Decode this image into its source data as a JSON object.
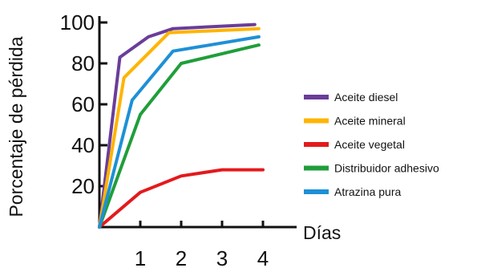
{
  "chart_data": {
    "type": "line",
    "title": "",
    "xlabel": "Días",
    "ylabel": "Porcentaje de pérdida",
    "x_ticks": [
      "1",
      "2",
      "3",
      "4"
    ],
    "y_ticks": [
      "20",
      "40",
      "60",
      "80",
      "100"
    ],
    "xlim": [
      0,
      4
    ],
    "ylim": [
      0,
      100
    ],
    "grid": false,
    "legend_position": "right",
    "series": [
      {
        "name": "Aceite diesel",
        "color": "#6a3d9a",
        "x": [
          0,
          0.5,
          1.2,
          1.8,
          3.8
        ],
        "y": [
          0,
          83,
          93,
          97,
          99
        ]
      },
      {
        "name": "Aceite mineral",
        "color": "#ffb400",
        "x": [
          0,
          0.6,
          1.7,
          3.9
        ],
        "y": [
          0,
          73,
          95,
          97
        ]
      },
      {
        "name": "Aceite vegetal",
        "color": "#e31a1c",
        "x": [
          0,
          1.0,
          2.0,
          3.0,
          4.0
        ],
        "y": [
          0,
          17,
          25,
          28,
          28
        ]
      },
      {
        "name": "Distribuidor adhesivo",
        "color": "#1f9e3a",
        "x": [
          0,
          1.0,
          2.0,
          3.9
        ],
        "y": [
          0,
          55,
          80,
          89
        ]
      },
      {
        "name": "Atrazina pura",
        "color": "#1e90d6",
        "x": [
          0,
          0.8,
          1.8,
          3.9
        ],
        "y": [
          0,
          62,
          86,
          93
        ]
      }
    ]
  }
}
